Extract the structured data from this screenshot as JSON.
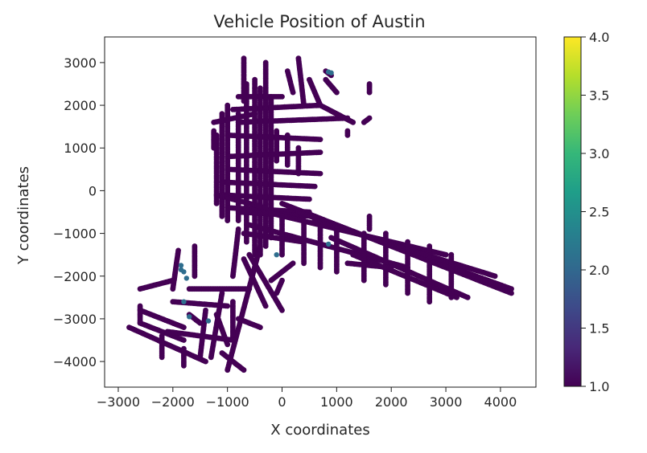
{
  "chart_data": {
    "type": "scatter",
    "title": "Vehicle Position of Austin",
    "xlabel": "X coordinates",
    "ylabel": "Y coordinates",
    "xlim": [
      -3250,
      4650
    ],
    "ylim": [
      -4600,
      3600
    ],
    "x_ticks": [
      -3000,
      -2000,
      -1000,
      0,
      1000,
      2000,
      3000,
      4000
    ],
    "x_tick_labels": [
      "−3000",
      "−2000",
      "−1000",
      "0",
      "1000",
      "2000",
      "3000",
      "4000"
    ],
    "y_ticks": [
      3000,
      2000,
      1000,
      0,
      -1000,
      -2000,
      -3000,
      -4000
    ],
    "y_tick_labels": [
      "3000",
      "2000",
      "1000",
      "0",
      "−1000",
      "−2000",
      "−3000",
      "−4000"
    ],
    "grid": false,
    "colorbar": {
      "colormap": "viridis",
      "range": [
        1.0,
        4.0
      ],
      "ticks": [
        1.0,
        1.5,
        2.0,
        2.5,
        3.0,
        3.5,
        4.0
      ],
      "tick_labels": [
        "1.0",
        "1.5",
        "2.0",
        "2.5",
        "3.0",
        "3.5",
        "4.0"
      ],
      "colors": [
        "#440154",
        "#482878",
        "#3e4989",
        "#31688e",
        "#26828e",
        "#1f9e89",
        "#35b779",
        "#6ece58",
        "#b5de2b",
        "#fde725"
      ]
    },
    "point_color": "#440154",
    "highlight_color": "#2f6e8e",
    "segments": [
      [
        [
          -500,
          -1500
        ],
        [
          -500,
          2600
        ]
      ],
      [
        [
          -400,
          -1500
        ],
        [
          -400,
          2400
        ]
      ],
      [
        [
          -300,
          -1300
        ],
        [
          -300,
          2400
        ]
      ],
      [
        [
          -200,
          -1100
        ],
        [
          -200,
          2200
        ]
      ],
      [
        [
          -650,
          -1200
        ],
        [
          -650,
          2500
        ]
      ],
      [
        [
          -800,
          1800
        ],
        [
          -800,
          -700
        ]
      ],
      [
        [
          -1200,
          1300
        ],
        [
          -1200,
          -300
        ]
      ],
      [
        [
          -1100,
          1800
        ],
        [
          -1100,
          -600
        ]
      ],
      [
        [
          -1000,
          2000
        ],
        [
          -1000,
          -700
        ]
      ],
      [
        [
          -1250,
          1600
        ],
        [
          -500,
          1800
        ]
      ],
      [
        [
          -1250,
          1400
        ],
        [
          -1250,
          1000
        ]
      ],
      [
        [
          -900,
          1900
        ],
        [
          700,
          2000
        ]
      ],
      [
        [
          -800,
          1600
        ],
        [
          1200,
          1700
        ]
      ],
      [
        [
          700,
          2000
        ],
        [
          1300,
          1600
        ]
      ],
      [
        [
          -1000,
          1300
        ],
        [
          700,
          1200
        ]
      ],
      [
        [
          -1000,
          800
        ],
        [
          700,
          900
        ]
      ],
      [
        [
          -1000,
          500
        ],
        [
          700,
          400
        ]
      ],
      [
        [
          -1100,
          200
        ],
        [
          600,
          100
        ]
      ],
      [
        [
          -1100,
          -100
        ],
        [
          500,
          -200
        ]
      ],
      [
        [
          -1000,
          -400
        ],
        [
          500,
          -500
        ]
      ],
      [
        [
          -800,
          2200
        ],
        [
          0,
          2200
        ]
      ],
      [
        [
          -300,
          3000
        ],
        [
          -300,
          1800
        ]
      ],
      [
        [
          -700,
          3100
        ],
        [
          -700,
          2100
        ]
      ],
      [
        [
          100,
          2800
        ],
        [
          200,
          2300
        ]
      ],
      [
        [
          300,
          3100
        ],
        [
          400,
          2000
        ]
      ],
      [
        [
          500,
          2600
        ],
        [
          700,
          2000
        ]
      ],
      [
        [
          800,
          2600
        ],
        [
          1000,
          2300
        ]
      ],
      [
        [
          800,
          2800
        ],
        [
          900,
          2700
        ]
      ],
      [
        [
          -100,
          1400
        ],
        [
          -100,
          700
        ]
      ],
      [
        [
          100,
          1300
        ],
        [
          100,
          600
        ]
      ],
      [
        [
          300,
          1000
        ],
        [
          300,
          400
        ]
      ],
      [
        [
          -1200,
          -100
        ],
        [
          -300,
          -400
        ]
      ],
      [
        [
          -800,
          -500
        ],
        [
          600,
          -600
        ]
      ],
      [
        [
          -700,
          -1000
        ],
        [
          400,
          -1200
        ]
      ],
      [
        [
          -600,
          -800
        ],
        [
          2300,
          -1800
        ]
      ],
      [
        [
          -300,
          -500
        ],
        [
          3000,
          -1500
        ]
      ],
      [
        [
          0,
          -300
        ],
        [
          4200,
          -2400
        ]
      ],
      [
        [
          300,
          -500
        ],
        [
          4200,
          -2300
        ]
      ],
      [
        [
          600,
          -700
        ],
        [
          3900,
          -2000
        ]
      ],
      [
        [
          900,
          -1100
        ],
        [
          3400,
          -2500
        ]
      ],
      [
        [
          1300,
          -1500
        ],
        [
          3200,
          -2500
        ]
      ],
      [
        [
          1500,
          -1000
        ],
        [
          1500,
          -2100
        ]
      ],
      [
        [
          1900,
          -1000
        ],
        [
          1900,
          -2200
        ]
      ],
      [
        [
          2300,
          -1200
        ],
        [
          2300,
          -2400
        ]
      ],
      [
        [
          2700,
          -1300
        ],
        [
          2700,
          -2600
        ]
      ],
      [
        [
          3100,
          -1500
        ],
        [
          3100,
          -2500
        ]
      ],
      [
        [
          1000,
          -900
        ],
        [
          1000,
          -1900
        ]
      ],
      [
        [
          700,
          -800
        ],
        [
          700,
          -1800
        ]
      ],
      [
        [
          400,
          -700
        ],
        [
          400,
          -1700
        ]
      ],
      [
        [
          0,
          -600
        ],
        [
          0,
          -1500
        ]
      ],
      [
        [
          1200,
          -1700
        ],
        [
          2000,
          -1800
        ]
      ],
      [
        [
          1600,
          -600
        ],
        [
          1600,
          -900
        ]
      ],
      [
        [
          -400,
          -1300
        ],
        [
          -1000,
          -4200
        ]
      ],
      [
        [
          -700,
          -1600
        ],
        [
          -300,
          -2700
        ]
      ],
      [
        [
          -600,
          -1500
        ],
        [
          0,
          -2800
        ]
      ],
      [
        [
          -1100,
          -2400
        ],
        [
          -1300,
          -3900
        ]
      ],
      [
        [
          -900,
          -2600
        ],
        [
          -900,
          -3500
        ]
      ],
      [
        [
          -1400,
          -2800
        ],
        [
          -1500,
          -3900
        ]
      ],
      [
        [
          -2800,
          -3200
        ],
        [
          -1400,
          -4000
        ]
      ],
      [
        [
          -2600,
          -3100
        ],
        [
          -1800,
          -3500
        ]
      ],
      [
        [
          -2100,
          -3300
        ],
        [
          -900,
          -3500
        ]
      ],
      [
        [
          -2000,
          -2600
        ],
        [
          -1000,
          -2700
        ]
      ],
      [
        [
          -1700,
          -2300
        ],
        [
          -600,
          -2300
        ]
      ],
      [
        [
          -1900,
          -1400
        ],
        [
          -2000,
          -2300
        ]
      ],
      [
        [
          -2600,
          -2300
        ],
        [
          -2000,
          -2100
        ]
      ],
      [
        [
          -2600,
          -2800
        ],
        [
          -1800,
          -3200
        ]
      ],
      [
        [
          -1600,
          -1300
        ],
        [
          -1600,
          -2000
        ]
      ],
      [
        [
          -1700,
          -2900
        ],
        [
          -1500,
          -3100
        ]
      ],
      [
        [
          -2600,
          -2700
        ],
        [
          -2600,
          -3100
        ]
      ],
      [
        [
          -1800,
          -3700
        ],
        [
          -1800,
          -4100
        ]
      ],
      [
        [
          -2200,
          -3400
        ],
        [
          -2200,
          -3900
        ]
      ],
      [
        [
          -1100,
          -3800
        ],
        [
          -700,
          -4200
        ]
      ],
      [
        [
          0,
          -2100
        ],
        [
          -100,
          -2400
        ]
      ],
      [
        [
          -800,
          -3000
        ],
        [
          -400,
          -3200
        ]
      ],
      [
        [
          -1200,
          -2900
        ],
        [
          -1000,
          -3600
        ]
      ],
      [
        [
          -800,
          -900
        ],
        [
          -900,
          -2000
        ]
      ],
      [
        [
          200,
          -1700
        ],
        [
          -200,
          -2100
        ]
      ],
      [
        [
          1600,
          2300
        ],
        [
          1600,
          2500
        ]
      ],
      [
        [
          1600,
          1700
        ],
        [
          1500,
          1600
        ]
      ],
      [
        [
          1200,
          1300
        ],
        [
          1200,
          1400
        ]
      ]
    ],
    "highlights": [
      [
        -1850,
        -1750
      ],
      [
        -1850,
        -1850
      ],
      [
        -1800,
        -1900
      ],
      [
        -1750,
        -2050
      ],
      [
        -1800,
        -2600
      ],
      [
        -1700,
        -2950
      ],
      [
        -1350,
        -3050
      ],
      [
        850,
        2780
      ],
      [
        900,
        2760
      ],
      [
        -100,
        -1500
      ],
      [
        850,
        -1250
      ]
    ]
  }
}
